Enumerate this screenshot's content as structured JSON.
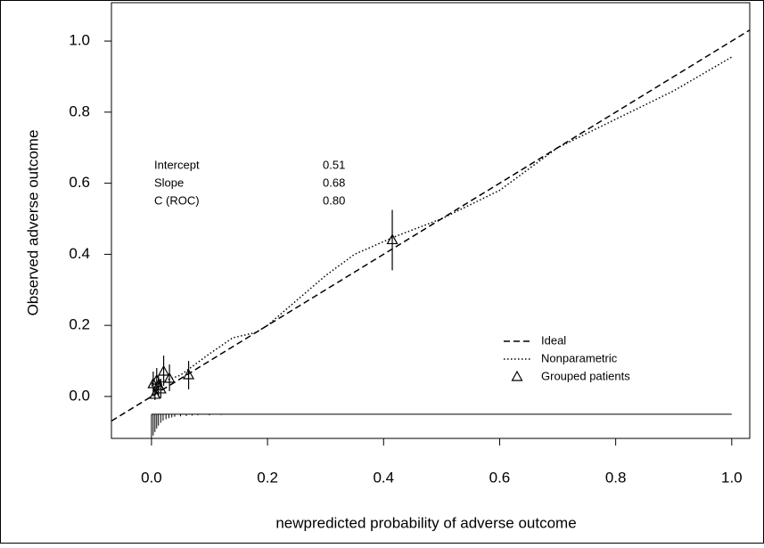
{
  "chart_data": {
    "type": "calibration",
    "x_label": "newpredicted probability of adverse outcome",
    "y_label": "Observed adverse outcome",
    "xlim": [
      -0.069,
      1.031
    ],
    "ylim": [
      -0.118,
      1.108
    ],
    "xticks": [
      {
        "value": 0,
        "label": "0.0"
      },
      0.2,
      0.4,
      0.6,
      0.8,
      {
        "value": 1,
        "label": "1.0"
      }
    ],
    "yticks": [
      {
        "value": 0,
        "label": "0.0"
      },
      0.2,
      0.4,
      0.6,
      0.8,
      {
        "value": 1,
        "label": "1.0"
      }
    ],
    "legend": "lower right",
    "stats": [
      {
        "label": "Intercept",
        "value": "0.51"
      },
      {
        "label": "Slope",
        "value": "0.68"
      },
      {
        "label": "C (ROC)",
        "value": "0.80"
      }
    ],
    "series": [
      {
        "name": "Ideal",
        "style": "dashed",
        "color": "#000000",
        "x": [
          -0.069,
          1.031
        ],
        "values": [
          -0.069,
          1.031
        ]
      },
      {
        "name": "Nonparametric",
        "style": "dotted",
        "color": "#000000",
        "x": [
          0,
          0.05,
          0.1,
          0.14,
          0.18,
          0.2,
          0.25,
          0.3,
          0.35,
          0.42,
          0.5,
          0.6,
          0.7,
          0.8,
          0.9,
          1.0
        ],
        "values": [
          0.03,
          0.06,
          0.12,
          0.165,
          0.18,
          0.2,
          0.27,
          0.34,
          0.4,
          0.45,
          0.5,
          0.58,
          0.7,
          0.78,
          0.86,
          0.955
        ]
      },
      {
        "name": "Grouped patients",
        "style": "triangle",
        "color": "#000000",
        "x": [
          0.003,
          0.006,
          0.009,
          0.012,
          0.016,
          0.021,
          0.031,
          0.064,
          0.415
        ],
        "values": [
          0.035,
          0.005,
          0.045,
          0.03,
          0.02,
          0.07,
          0.05,
          0.06,
          0.44
        ],
        "lower": [
          0.0,
          -0.01,
          0.01,
          0.0,
          -0.005,
          0.03,
          0.015,
          0.02,
          0.355
        ],
        "upper": [
          0.07,
          0.03,
          0.08,
          0.06,
          0.05,
          0.115,
          0.09,
          0.1,
          0.525
        ]
      }
    ],
    "rug": {
      "baseline": -0.05,
      "range": [
        0,
        1
      ],
      "x": [
        0.0,
        0.003,
        0.006,
        0.009,
        0.012,
        0.016,
        0.02,
        0.025,
        0.03,
        0.035,
        0.04,
        0.05,
        0.06,
        0.07,
        0.08,
        0.1,
        0.12
      ],
      "lengths": [
        0.068,
        0.06,
        0.05,
        0.04,
        0.032,
        0.024,
        0.018,
        0.014,
        0.011,
        0.009,
        0.007,
        0.006,
        0.005,
        0.004,
        0.003,
        0.003,
        0.002
      ]
    }
  }
}
